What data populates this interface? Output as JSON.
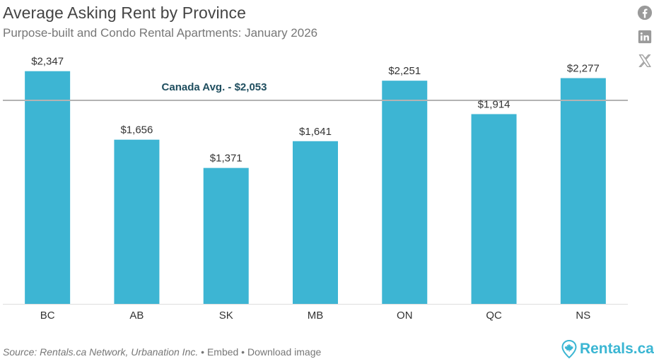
{
  "header": {
    "title": "Average Asking Rent by Province",
    "subtitle": "Purpose-built and Condo Rental Apartments: January 2026"
  },
  "share_icons": [
    "facebook-icon",
    "linkedin-icon",
    "x-icon"
  ],
  "colors": {
    "bar": "#3db5d3",
    "avg_line": "#b3b3b3",
    "avg_label": "#1f4e5f",
    "brand": "#3bb6d3"
  },
  "chart_data": {
    "type": "bar",
    "categories": [
      "BC",
      "AB",
      "SK",
      "MB",
      "ON",
      "QC",
      "NS"
    ],
    "values": [
      2347,
      1656,
      1371,
      1641,
      2251,
      1914,
      2277
    ],
    "data_labels": [
      "$2,347",
      "$1,656",
      "$1,371",
      "$1,641",
      "$2,251",
      "$1,914",
      "$2,277"
    ],
    "ylim": [
      0,
      2680
    ],
    "grid": false,
    "reference_line": {
      "value": 2053,
      "label": "Canada Avg. - $2,053"
    }
  },
  "footer": {
    "source": "Source: Rentals.ca Network, Urbanation Inc.",
    "sep1": " • ",
    "embed": "Embed",
    "sep2": " • ",
    "download": "Download image"
  },
  "brand": {
    "name": "Rentals.ca",
    "icon": "map-pin-maple-leaf-icon"
  }
}
